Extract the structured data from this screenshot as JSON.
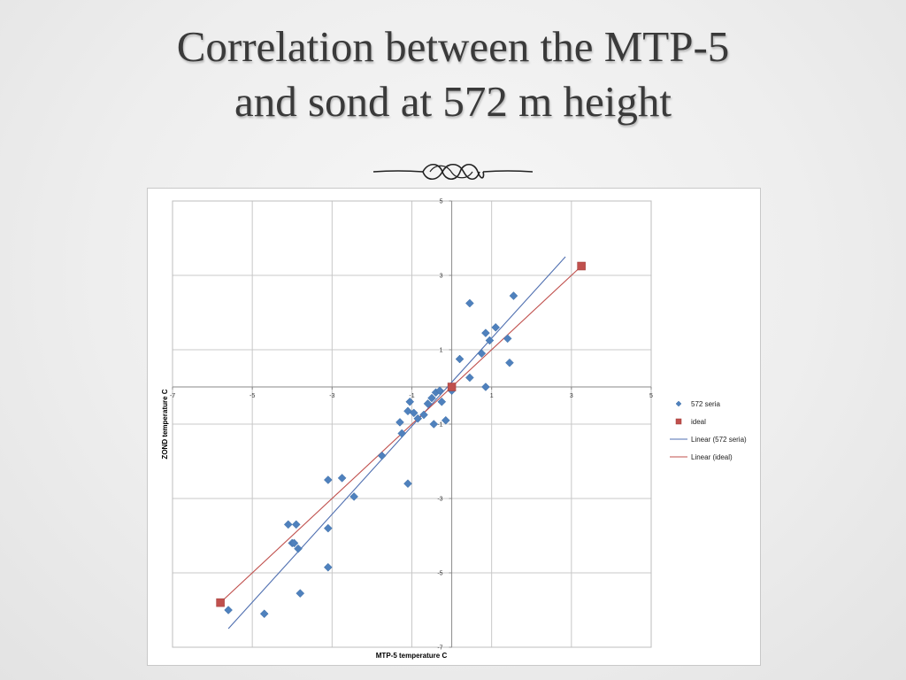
{
  "slide": {
    "title_line1": "Correlation between the MTP-5",
    "title_line2": "and sond at 572 m height"
  },
  "chart_data": {
    "type": "scatter",
    "xlabel": "MTP-5 temperature C",
    "ylabel": "ZOND temperature C",
    "xlim": [
      -7,
      5
    ],
    "ylim": [
      -7,
      5
    ],
    "x_ticks": [
      -7,
      -5,
      -3,
      -1,
      1,
      3,
      5
    ],
    "y_ticks": [
      5,
      3,
      1,
      -1,
      -3,
      -5,
      -7
    ],
    "tick_labels_x": [
      "-7",
      "-5",
      "-3",
      "-1",
      "1",
      "3",
      "5"
    ],
    "tick_labels_y": [
      "5",
      "3",
      "1",
      "-1",
      "-3",
      "-5",
      "-7"
    ],
    "grid": true,
    "legend_position": "right",
    "series": [
      {
        "name": "572 seria",
        "marker": "diamond",
        "color": "#4f81bd",
        "points": [
          [
            -5.6,
            -6.0
          ],
          [
            -4.7,
            -6.1
          ],
          [
            -4.1,
            -3.7
          ],
          [
            -4.0,
            -4.2
          ],
          [
            -3.95,
            -4.2
          ],
          [
            -3.9,
            -3.7
          ],
          [
            -3.85,
            -4.35
          ],
          [
            -3.8,
            -5.55
          ],
          [
            -3.1,
            -2.5
          ],
          [
            -3.1,
            -3.8
          ],
          [
            -3.1,
            -4.85
          ],
          [
            -2.75,
            -2.45
          ],
          [
            -2.45,
            -2.95
          ],
          [
            -1.75,
            -1.85
          ],
          [
            -1.3,
            -0.95
          ],
          [
            -1.25,
            -1.25
          ],
          [
            -1.1,
            -0.65
          ],
          [
            -1.1,
            -2.6
          ],
          [
            -1.05,
            -0.4
          ],
          [
            -0.95,
            -0.7
          ],
          [
            -0.85,
            -0.85
          ],
          [
            -0.7,
            -0.75
          ],
          [
            -0.6,
            -0.45
          ],
          [
            -0.5,
            -0.3
          ],
          [
            -0.45,
            -1.0
          ],
          [
            -0.4,
            -0.15
          ],
          [
            -0.3,
            -0.1
          ],
          [
            -0.25,
            -0.4
          ],
          [
            -0.15,
            -0.9
          ],
          [
            0.0,
            -0.1
          ],
          [
            0.2,
            0.75
          ],
          [
            0.45,
            2.25
          ],
          [
            0.45,
            0.25
          ],
          [
            0.75,
            0.9
          ],
          [
            0.85,
            0.0
          ],
          [
            0.85,
            1.45
          ],
          [
            0.95,
            1.25
          ],
          [
            1.1,
            1.6
          ],
          [
            1.4,
            1.3
          ],
          [
            1.45,
            0.65
          ],
          [
            1.55,
            2.45
          ]
        ]
      },
      {
        "name": "ideal",
        "marker": "square",
        "color": "#c0504d",
        "points": [
          [
            -5.8,
            -5.8
          ],
          [
            0.0,
            0.0
          ],
          [
            3.25,
            3.25
          ]
        ]
      }
    ],
    "trendlines": [
      {
        "name": "Linear (572 seria)",
        "color": "#4f6fb0",
        "from": [
          -5.6,
          -6.5
        ],
        "to": [
          2.85,
          3.5
        ]
      },
      {
        "name": "Linear (ideal)",
        "color": "#c0504d",
        "from": [
          -5.8,
          -5.8
        ],
        "to": [
          3.25,
          3.25
        ]
      }
    ]
  }
}
